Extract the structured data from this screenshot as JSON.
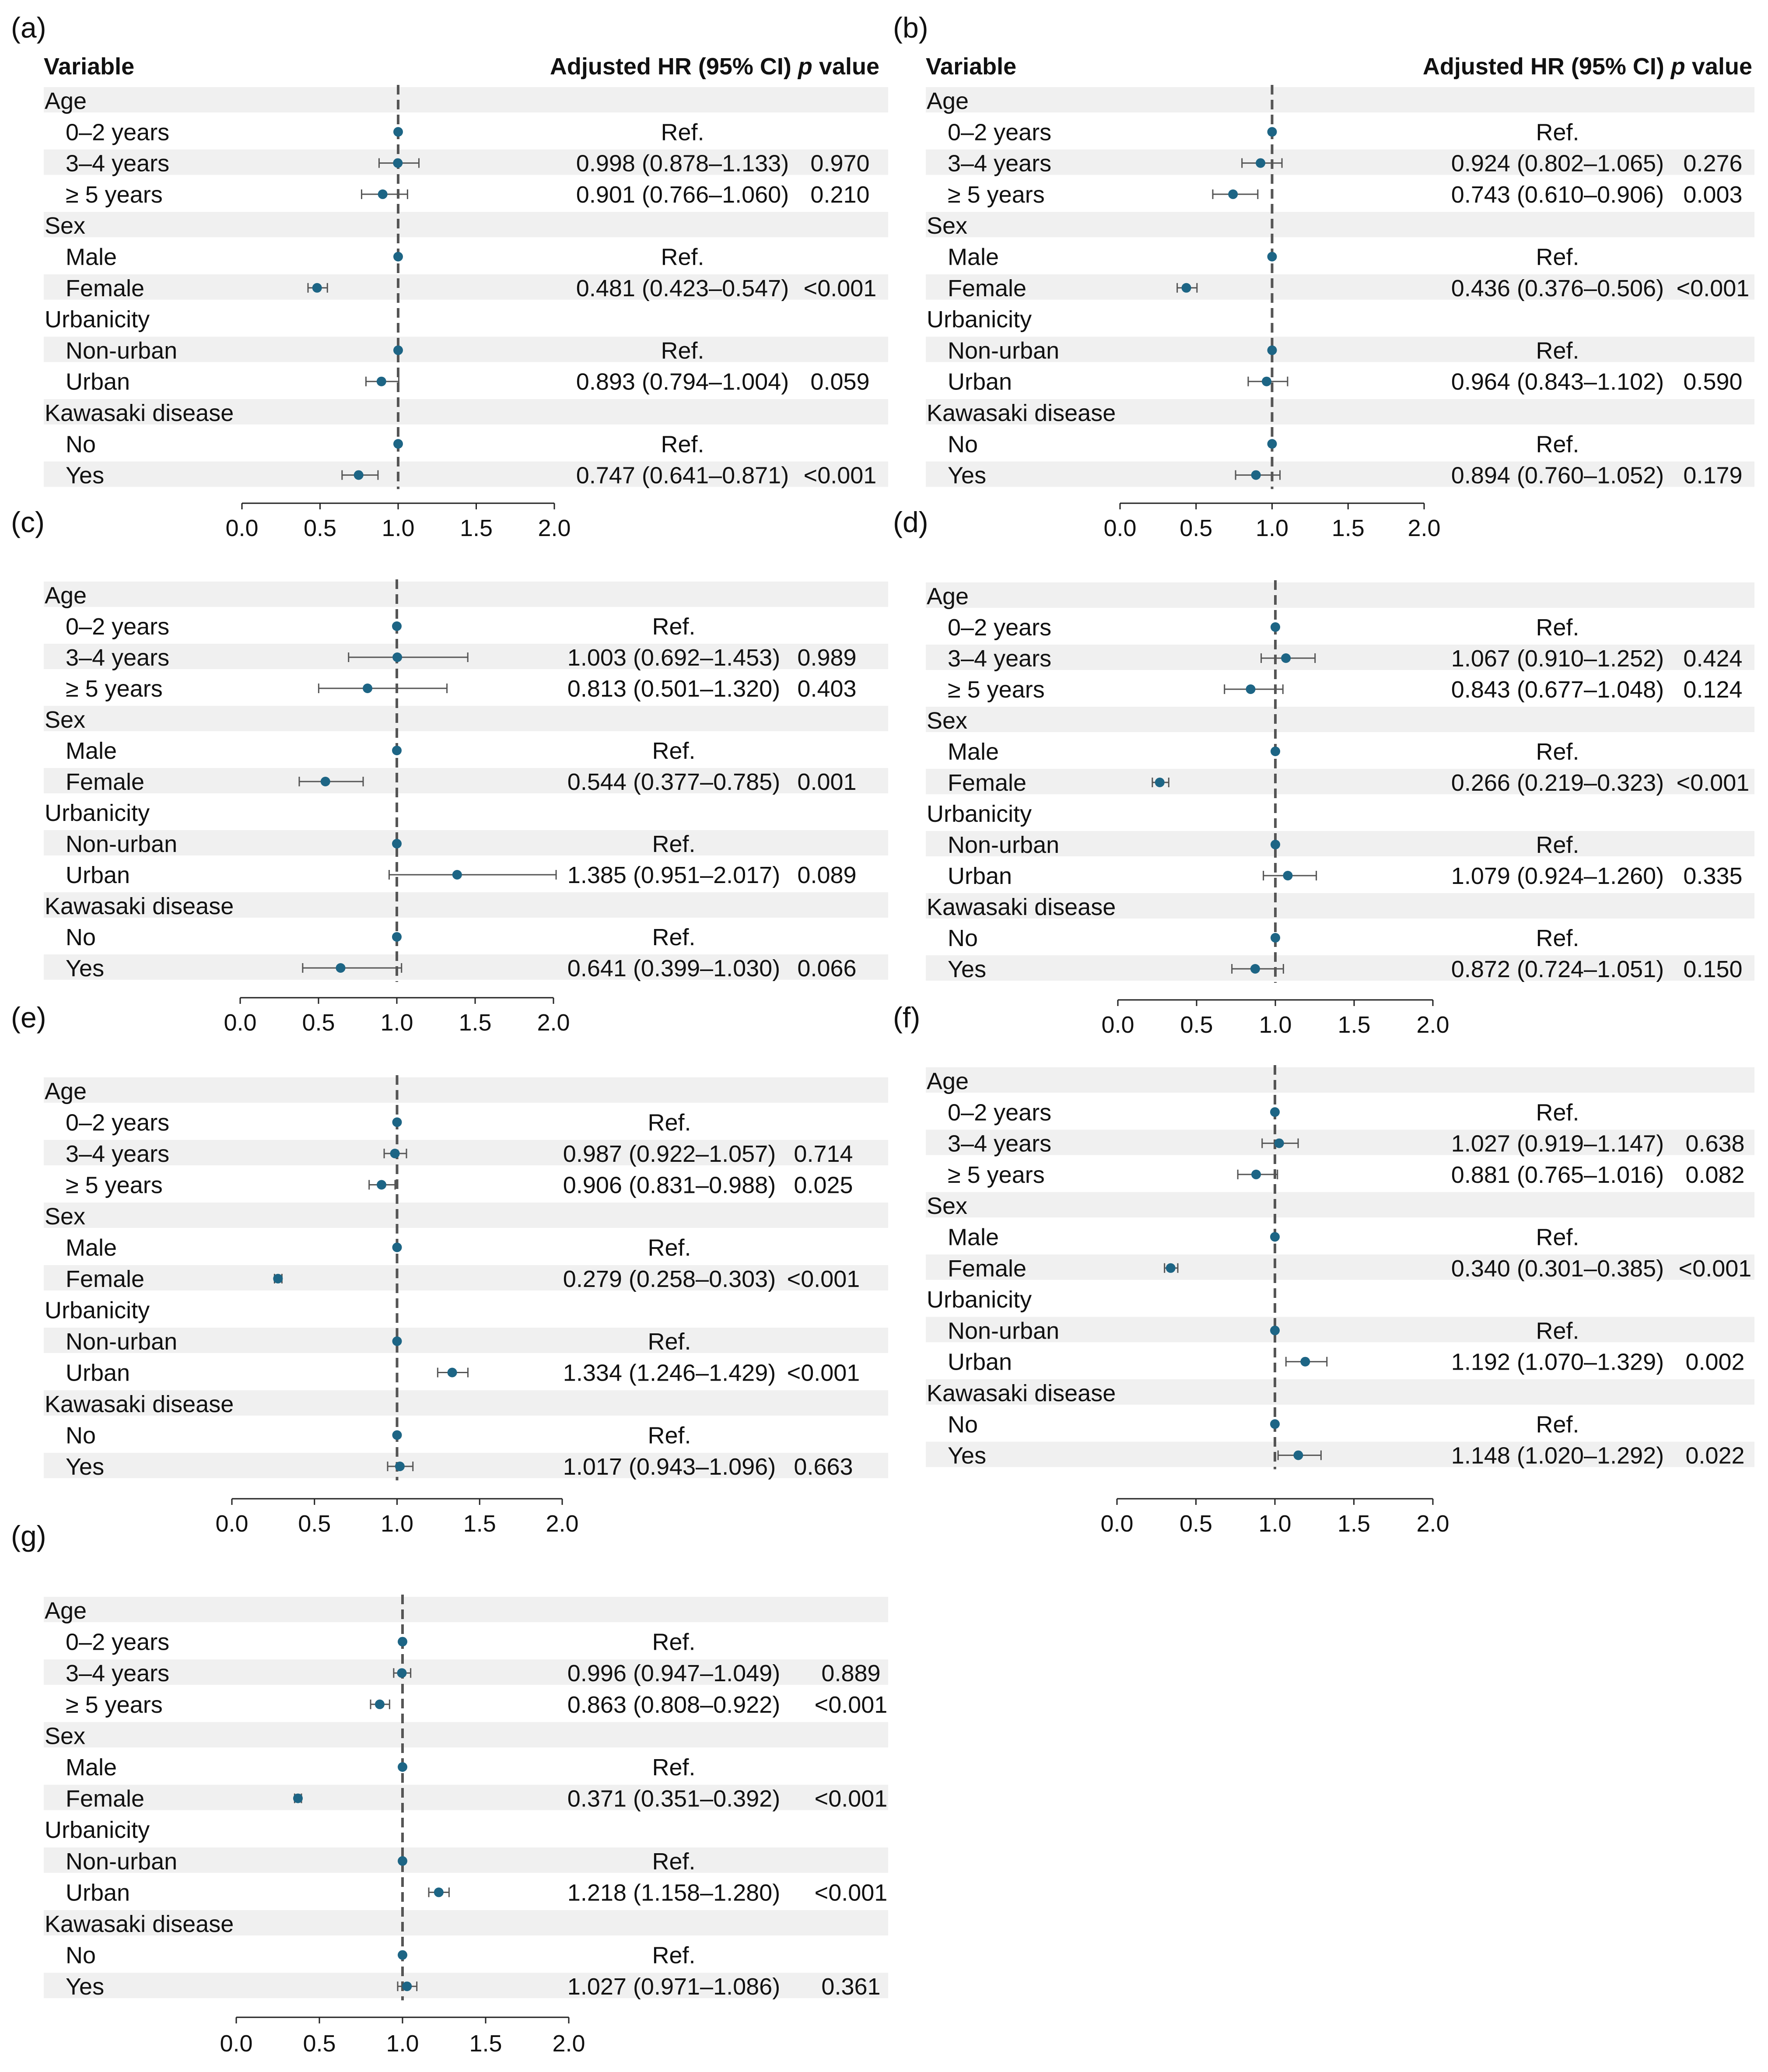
{
  "figure": {
    "variable_header": "Variable",
    "hr_header": "Adjusted HR (95% CI)",
    "p_header": "p value",
    "colors": {
      "marker": "#1d6585",
      "whisker": "#555555",
      "ref_line": "#555555",
      "stripe": "#f0f0f0",
      "text": "#111111"
    }
  },
  "chart_data": [
    {
      "type": "forest",
      "label": "(a)",
      "show_header": true,
      "xlim": [
        0,
        2
      ],
      "ref_value": 1,
      "ticks": [
        "0.0",
        "0.5",
        "1.0",
        "1.5",
        "2.0"
      ],
      "rows": [
        {
          "label": "Age",
          "group": true
        },
        {
          "label": "0–2 years",
          "hr": 1,
          "lo": 1,
          "hi": 1,
          "text": "Ref.",
          "p": ""
        },
        {
          "label": "3–4 years",
          "hr": 0.998,
          "lo": 0.878,
          "hi": 1.133,
          "text": "0.998 (0.878–1.133)",
          "p": "0.970"
        },
        {
          "label": "≥ 5 years",
          "hr": 0.901,
          "lo": 0.766,
          "hi": 1.06,
          "text": "0.901 (0.766–1.060)",
          "p": "0.210"
        },
        {
          "label": "Sex",
          "group": true
        },
        {
          "label": "Male",
          "hr": 1,
          "lo": 1,
          "hi": 1,
          "text": "Ref.",
          "p": ""
        },
        {
          "label": "Female",
          "hr": 0.481,
          "lo": 0.423,
          "hi": 0.547,
          "text": "0.481 (0.423–0.547)",
          "p": "<0.001"
        },
        {
          "label": "Urbanicity",
          "group": true
        },
        {
          "label": "Non-urban",
          "hr": 1,
          "lo": 1,
          "hi": 1,
          "text": "Ref.",
          "p": ""
        },
        {
          "label": "Urban",
          "hr": 0.893,
          "lo": 0.794,
          "hi": 1.004,
          "text": "0.893 (0.794–1.004)",
          "p": "0.059"
        },
        {
          "label": "Kawasaki disease",
          "group": true
        },
        {
          "label": "No",
          "hr": 1,
          "lo": 1,
          "hi": 1,
          "text": "Ref.",
          "p": ""
        },
        {
          "label": "Yes",
          "hr": 0.747,
          "lo": 0.641,
          "hi": 0.871,
          "text": "0.747 (0.641–0.871)",
          "p": "<0.001"
        }
      ]
    },
    {
      "type": "forest",
      "label": "(b)",
      "show_header": true,
      "xlim": [
        0,
        2
      ],
      "ref_value": 1,
      "ticks": [
        "0.0",
        "0.5",
        "1.0",
        "1.5",
        "2.0"
      ],
      "rows": [
        {
          "label": "Age",
          "group": true
        },
        {
          "label": "0–2 years",
          "hr": 1,
          "lo": 1,
          "hi": 1,
          "text": "Ref.",
          "p": ""
        },
        {
          "label": "3–4 years",
          "hr": 0.924,
          "lo": 0.802,
          "hi": 1.065,
          "text": "0.924 (0.802–1.065)",
          "p": "0.276"
        },
        {
          "label": "≥ 5 years",
          "hr": 0.743,
          "lo": 0.61,
          "hi": 0.906,
          "text": "0.743 (0.610–0.906)",
          "p": "0.003"
        },
        {
          "label": "Sex",
          "group": true
        },
        {
          "label": "Male",
          "hr": 1,
          "lo": 1,
          "hi": 1,
          "text": "Ref.",
          "p": ""
        },
        {
          "label": "Female",
          "hr": 0.436,
          "lo": 0.376,
          "hi": 0.506,
          "text": "0.436 (0.376–0.506)",
          "p": "<0.001"
        },
        {
          "label": "Urbanicity",
          "group": true
        },
        {
          "label": "Non-urban",
          "hr": 1,
          "lo": 1,
          "hi": 1,
          "text": "Ref.",
          "p": ""
        },
        {
          "label": "Urban",
          "hr": 0.964,
          "lo": 0.843,
          "hi": 1.102,
          "text": "0.964 (0.843–1.102)",
          "p": "0.590"
        },
        {
          "label": "Kawasaki disease",
          "group": true
        },
        {
          "label": "No",
          "hr": 1,
          "lo": 1,
          "hi": 1,
          "text": "Ref.",
          "p": ""
        },
        {
          "label": "Yes",
          "hr": 0.894,
          "lo": 0.76,
          "hi": 1.052,
          "text": "0.894 (0.760–1.052)",
          "p": "0.179"
        }
      ]
    },
    {
      "type": "forest",
      "label": "(c)",
      "show_header": false,
      "xlim": [
        0,
        2
      ],
      "ref_value": 1,
      "ticks": [
        "0.0",
        "0.5",
        "1.0",
        "1.5",
        "2.0"
      ],
      "rows": [
        {
          "label": "Age",
          "group": true
        },
        {
          "label": "0–2 years",
          "hr": 1,
          "lo": 1,
          "hi": 1,
          "text": "Ref.",
          "p": ""
        },
        {
          "label": "3–4 years",
          "hr": 1.003,
          "lo": 0.692,
          "hi": 1.453,
          "text": "1.003 (0.692–1.453)",
          "p": "0.989"
        },
        {
          "label": "≥ 5 years",
          "hr": 0.813,
          "lo": 0.501,
          "hi": 1.32,
          "text": "0.813 (0.501–1.320)",
          "p": "0.403"
        },
        {
          "label": "Sex",
          "group": true
        },
        {
          "label": "Male",
          "hr": 1,
          "lo": 1,
          "hi": 1,
          "text": "Ref.",
          "p": ""
        },
        {
          "label": "Female",
          "hr": 0.544,
          "lo": 0.377,
          "hi": 0.785,
          "text": "0.544 (0.377–0.785)",
          "p": "0.001"
        },
        {
          "label": "Urbanicity",
          "group": true
        },
        {
          "label": "Non-urban",
          "hr": 1,
          "lo": 1,
          "hi": 1,
          "text": "Ref.",
          "p": ""
        },
        {
          "label": "Urban",
          "hr": 1.385,
          "lo": 0.951,
          "hi": 2.017,
          "text": "1.385 (0.951–2.017)",
          "p": "0.089"
        },
        {
          "label": "Kawasaki disease",
          "group": true
        },
        {
          "label": "No",
          "hr": 1,
          "lo": 1,
          "hi": 1,
          "text": "Ref.",
          "p": ""
        },
        {
          "label": "Yes",
          "hr": 0.641,
          "lo": 0.399,
          "hi": 1.03,
          "text": "0.641 (0.399–1.030)",
          "p": "0.066"
        }
      ]
    },
    {
      "type": "forest",
      "label": "(d)",
      "show_header": false,
      "xlim": [
        0,
        2
      ],
      "ref_value": 1,
      "ticks": [
        "0.0",
        "0.5",
        "1.0",
        "1.5",
        "2.0"
      ],
      "rows": [
        {
          "label": "Age",
          "group": true
        },
        {
          "label": "0–2 years",
          "hr": 1,
          "lo": 1,
          "hi": 1,
          "text": "Ref.",
          "p": ""
        },
        {
          "label": "3–4 years",
          "hr": 1.067,
          "lo": 0.91,
          "hi": 1.252,
          "text": "1.067 (0.910–1.252)",
          "p": "0.424"
        },
        {
          "label": "≥ 5 years",
          "hr": 0.843,
          "lo": 0.677,
          "hi": 1.048,
          "text": "0.843 (0.677–1.048)",
          "p": "0.124"
        },
        {
          "label": "Sex",
          "group": true
        },
        {
          "label": "Male",
          "hr": 1,
          "lo": 1,
          "hi": 1,
          "text": "Ref.",
          "p": ""
        },
        {
          "label": "Female",
          "hr": 0.266,
          "lo": 0.219,
          "hi": 0.323,
          "text": "0.266 (0.219–0.323)",
          "p": "<0.001"
        },
        {
          "label": "Urbanicity",
          "group": true
        },
        {
          "label": "Non-urban",
          "hr": 1,
          "lo": 1,
          "hi": 1,
          "text": "Ref.",
          "p": ""
        },
        {
          "label": "Urban",
          "hr": 1.079,
          "lo": 0.924,
          "hi": 1.26,
          "text": "1.079 (0.924–1.260)",
          "p": "0.335"
        },
        {
          "label": "Kawasaki disease",
          "group": true
        },
        {
          "label": "No",
          "hr": 1,
          "lo": 1,
          "hi": 1,
          "text": "Ref.",
          "p": ""
        },
        {
          "label": "Yes",
          "hr": 0.872,
          "lo": 0.724,
          "hi": 1.051,
          "text": "0.872 (0.724–1.051)",
          "p": "0.150"
        }
      ]
    },
    {
      "type": "forest",
      "label": "(e)",
      "show_header": false,
      "xlim": [
        0,
        2
      ],
      "ref_value": 1,
      "ticks": [
        "0.0",
        "0.5",
        "1.0",
        "1.5",
        "2.0"
      ],
      "rows": [
        {
          "label": "Age",
          "group": true
        },
        {
          "label": "0–2 years",
          "hr": 1,
          "lo": 1,
          "hi": 1,
          "text": "Ref.",
          "p": ""
        },
        {
          "label": "3–4 years",
          "hr": 0.987,
          "lo": 0.922,
          "hi": 1.057,
          "text": "0.987 (0.922–1.057)",
          "p": "0.714"
        },
        {
          "label": "≥ 5 years",
          "hr": 0.906,
          "lo": 0.831,
          "hi": 0.988,
          "text": "0.906 (0.831–0.988)",
          "p": "0.025"
        },
        {
          "label": "Sex",
          "group": true
        },
        {
          "label": "Male",
          "hr": 1,
          "lo": 1,
          "hi": 1,
          "text": "Ref.",
          "p": ""
        },
        {
          "label": "Female",
          "hr": 0.279,
          "lo": 0.258,
          "hi": 0.303,
          "text": "0.279 (0.258–0.303)",
          "p": "<0.001"
        },
        {
          "label": "Urbanicity",
          "group": true
        },
        {
          "label": "Non-urban",
          "hr": 1,
          "lo": 1,
          "hi": 1,
          "text": "Ref.",
          "p": ""
        },
        {
          "label": "Urban",
          "hr": 1.334,
          "lo": 1.246,
          "hi": 1.429,
          "text": "1.334 (1.246–1.429)",
          "p": "<0.001"
        },
        {
          "label": "Kawasaki disease",
          "group": true
        },
        {
          "label": "No",
          "hr": 1,
          "lo": 1,
          "hi": 1,
          "text": "Ref.",
          "p": ""
        },
        {
          "label": "Yes",
          "hr": 1.017,
          "lo": 0.943,
          "hi": 1.096,
          "text": "1.017 (0.943–1.096)",
          "p": "0.663"
        }
      ]
    },
    {
      "type": "forest",
      "label": "(f)",
      "show_header": false,
      "xlim": [
        0,
        2
      ],
      "ref_value": 1,
      "ticks": [
        "0.0",
        "0.5",
        "1.0",
        "1.5",
        "2.0"
      ],
      "rows": [
        {
          "label": "Age",
          "group": true
        },
        {
          "label": "0–2 years",
          "hr": 1,
          "lo": 1,
          "hi": 1,
          "text": "Ref.",
          "p": ""
        },
        {
          "label": "3–4 years",
          "hr": 1.027,
          "lo": 0.919,
          "hi": 1.147,
          "text": "1.027 (0.919–1.147)",
          "p": "0.638"
        },
        {
          "label": "≥ 5 years",
          "hr": 0.881,
          "lo": 0.765,
          "hi": 1.016,
          "text": "0.881 (0.765–1.016)",
          "p": "0.082"
        },
        {
          "label": "Sex",
          "group": true
        },
        {
          "label": "Male",
          "hr": 1,
          "lo": 1,
          "hi": 1,
          "text": "Ref.",
          "p": ""
        },
        {
          "label": "Female",
          "hr": 0.34,
          "lo": 0.301,
          "hi": 0.385,
          "text": "0.340 (0.301–0.385)",
          "p": "<0.001"
        },
        {
          "label": "Urbanicity",
          "group": true
        },
        {
          "label": "Non-urban",
          "hr": 1,
          "lo": 1,
          "hi": 1,
          "text": "Ref.",
          "p": ""
        },
        {
          "label": "Urban",
          "hr": 1.192,
          "lo": 1.07,
          "hi": 1.329,
          "text": "1.192 (1.070–1.329)",
          "p": "0.002"
        },
        {
          "label": "Kawasaki disease",
          "group": true
        },
        {
          "label": "No",
          "hr": 1,
          "lo": 1,
          "hi": 1,
          "text": "Ref.",
          "p": ""
        },
        {
          "label": "Yes",
          "hr": 1.148,
          "lo": 1.02,
          "hi": 1.292,
          "text": "1.148 (1.020–1.292)",
          "p": "0.022"
        }
      ]
    },
    {
      "type": "forest",
      "label": "(g)",
      "show_header": false,
      "xlim": [
        0,
        2
      ],
      "ref_value": 1,
      "ticks": [
        "0.0",
        "0.5",
        "1.0",
        "1.5",
        "2.0"
      ],
      "rows": [
        {
          "label": "Age",
          "group": true
        },
        {
          "label": "0–2 years",
          "hr": 1,
          "lo": 1,
          "hi": 1,
          "text": "Ref.",
          "p": ""
        },
        {
          "label": "3–4 years",
          "hr": 0.996,
          "lo": 0.947,
          "hi": 1.049,
          "text": "0.996 (0.947–1.049)",
          "p": "0.889"
        },
        {
          "label": "≥ 5 years",
          "hr": 0.863,
          "lo": 0.808,
          "hi": 0.922,
          "text": "0.863 (0.808–0.922)",
          "p": "<0.001"
        },
        {
          "label": "Sex",
          "group": true
        },
        {
          "label": "Male",
          "hr": 1,
          "lo": 1,
          "hi": 1,
          "text": "Ref.",
          "p": ""
        },
        {
          "label": "Female",
          "hr": 0.371,
          "lo": 0.351,
          "hi": 0.392,
          "text": "0.371 (0.351–0.392)",
          "p": "<0.001"
        },
        {
          "label": "Urbanicity",
          "group": true
        },
        {
          "label": "Non-urban",
          "hr": 1,
          "lo": 1,
          "hi": 1,
          "text": "Ref.",
          "p": ""
        },
        {
          "label": "Urban",
          "hr": 1.218,
          "lo": 1.158,
          "hi": 1.28,
          "text": "1.218 (1.158–1.280)",
          "p": "<0.001"
        },
        {
          "label": "Kawasaki disease",
          "group": true
        },
        {
          "label": "No",
          "hr": 1,
          "lo": 1,
          "hi": 1,
          "text": "Ref.",
          "p": ""
        },
        {
          "label": "Yes",
          "hr": 1.027,
          "lo": 0.971,
          "hi": 1.086,
          "text": "1.027 (0.971–1.086)",
          "p": "0.361"
        }
      ]
    }
  ]
}
